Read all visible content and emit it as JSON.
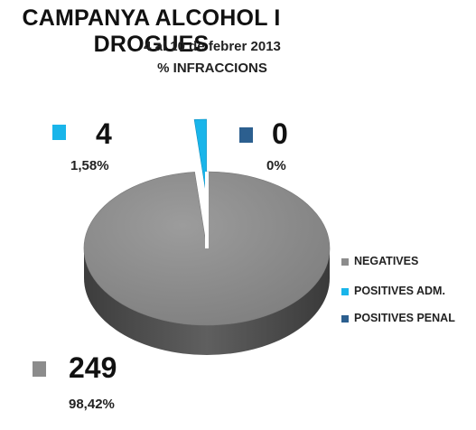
{
  "chart_data": {
    "type": "pie",
    "title": "CAMPANYA ALCOHOL I DROGUES",
    "subtitle": "4 al 10 de febrer 2013",
    "unit_label": "% INFRACCIONS",
    "slices": [
      {
        "name": "NEGATIVES",
        "value": 249,
        "percent": 98.42,
        "color": "#8c8c8c"
      },
      {
        "name": "POSITIVES ADM.",
        "value": 4,
        "percent": 1.58,
        "color": "#19b5ea"
      },
      {
        "name": "POSITIVES PENAL",
        "value": 0,
        "percent": 0,
        "color": "#2c5f8f"
      }
    ],
    "legend_position": "right"
  },
  "callouts": {
    "negatives": {
      "count": "249",
      "percent": "98,42%"
    },
    "positives_adm": {
      "count": "4",
      "percent": "1,58%"
    },
    "positives_penal": {
      "count": "0",
      "percent": "0%"
    }
  }
}
